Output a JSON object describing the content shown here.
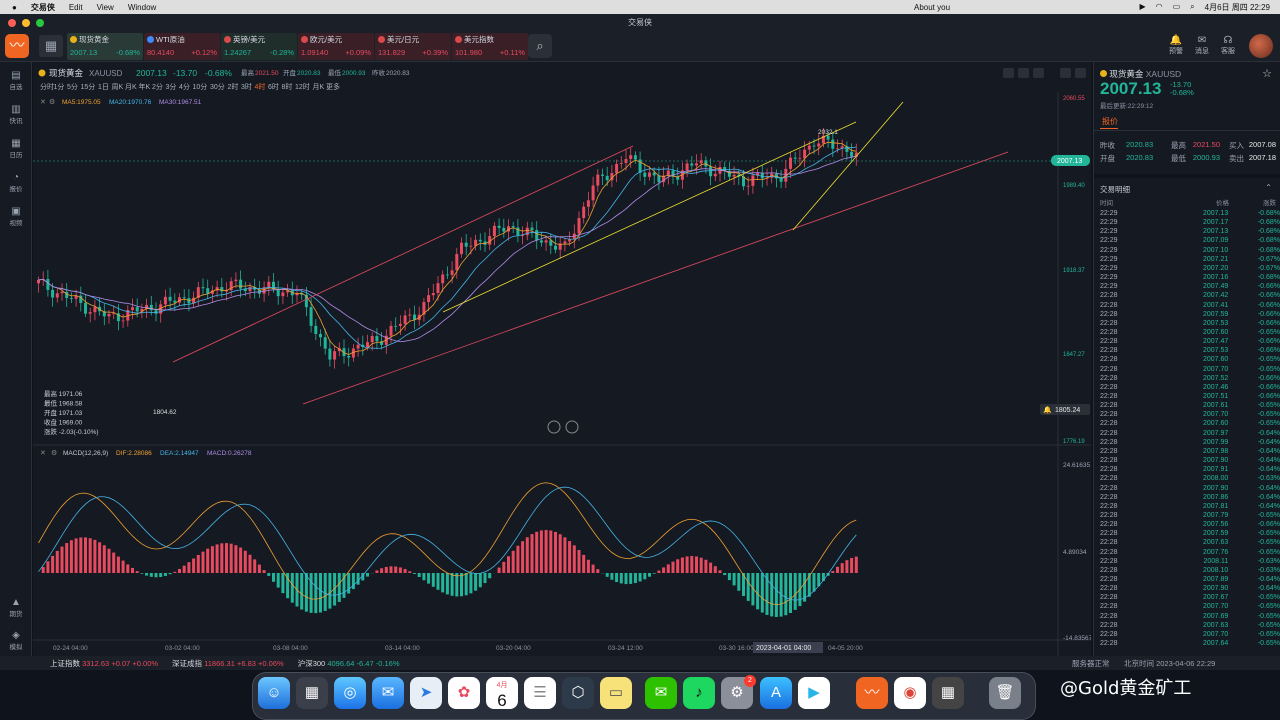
{
  "menubar": {
    "app": "交易侠",
    "menus": [
      "Edit",
      "View",
      "Window"
    ],
    "center": "About you",
    "datetime": "4月6日 周四 22:29"
  },
  "window": {
    "title": "交易侠"
  },
  "toolbar": {
    "tickers": [
      {
        "name": "现货黄金",
        "price": "2007.13",
        "change": "-0.68%",
        "color": "#22b59a",
        "active": true
      },
      {
        "name": "WTI原油",
        "price": "80.4140",
        "change": "+0.12%",
        "color": "#e84a5f"
      },
      {
        "name": "英镑/美元",
        "price": "1.24267",
        "change": "-0.28%",
        "color": "#22b59a"
      },
      {
        "name": "欧元/美元",
        "price": "1.09140",
        "change": "+0.09%",
        "color": "#e84a5f"
      },
      {
        "name": "美元/日元",
        "price": "131.829",
        "change": "+0.39%",
        "color": "#e84a5f"
      },
      {
        "name": "美元指数",
        "price": "101.980",
        "change": "+0.11%",
        "color": "#e84a5f"
      }
    ],
    "actions": [
      "预警",
      "消息",
      "客服"
    ]
  },
  "sidebar": {
    "top": [
      "自选",
      "快讯",
      "日历",
      "报价",
      "视频"
    ],
    "bottom": [
      "期货",
      "模拟"
    ]
  },
  "chart": {
    "symbol_name": "现货黄金",
    "symbol": "XAUUSD",
    "price": "2007.13",
    "change": "-13.70",
    "change_pct": "-0.68%",
    "high_label": "最高",
    "high": "2021.50",
    "open_label": "开盘",
    "open": "2020.83",
    "low_label": "最低",
    "low": "2000.93",
    "close_label": "昨收",
    "prev_close": "2020.83",
    "periods": [
      "分时",
      "1分",
      "5分",
      "15分",
      "1日",
      "周K",
      "月K",
      "年K",
      "2分",
      "3分",
      "4分",
      "10分",
      "30分",
      "2时",
      "3时",
      "4时",
      "6时",
      "8时",
      "12时",
      "月K",
      "更多"
    ],
    "active_period": "4时",
    "ma": {
      "ma5": "MA5:1975.05",
      "ma20": "MA20:1970.76",
      "ma30": "MA30:1967.51"
    },
    "price_axis": [
      "2060.55",
      "1989.40",
      "1918.37",
      "1847.27",
      "1776.19"
    ],
    "current_price_tag": "2007.13",
    "alert_price": "1805.24",
    "mark_low": "1804.62",
    "mark_high": "2032.1",
    "tooltip": [
      "最高 1971.06",
      "最低 1968.58",
      "开盘 1971.03",
      "收盘 1969.00",
      "涨跌 -2.03(-0.10%)"
    ],
    "macd": {
      "label": "MACD(12,26,9)",
      "dif": "DIF:2.28086",
      "dea": "DEA:2.14947",
      "macd": "MACD:0.26278",
      "axis": [
        "24.61635",
        "4.89034",
        "-14.83567"
      ]
    },
    "dates": [
      "02-24 04:00",
      "03-02 04:00",
      "03-08 04:00",
      "03-14 04:00",
      "03-20 04:00",
      "03-24 12:00",
      "03-30 16:00",
      "04-05 20:00"
    ],
    "crosshair_date": "2023-04-01 04:00"
  },
  "quote": {
    "name": "现货黄金",
    "symbol": "XAUUSD",
    "price": "2007.13",
    "change": "-13.70",
    "change_pct": "-0.68%",
    "updated": "最后更新:22:29:12",
    "tab": "报价",
    "rows": [
      {
        "l1": "昨收",
        "v1": "2020.83",
        "l2": "最高",
        "v2": "2021.50",
        "l3": "买入",
        "v3": "2007.08"
      },
      {
        "l1": "开盘",
        "v1": "2020.83",
        "l2": "最低",
        "v2": "2000.93",
        "l3": "卖出",
        "v3": "2007.18"
      }
    ],
    "ticks_title": "交易明细",
    "tick_headers": [
      "时间",
      "价格",
      "涨跌"
    ],
    "ticks": [
      [
        "22:29",
        "2007.13",
        "-0.68%"
      ],
      [
        "22:29",
        "2007.17",
        "-0.68%"
      ],
      [
        "22:29",
        "2007.13",
        "-0.68%"
      ],
      [
        "22:29",
        "2007.09",
        "-0.68%"
      ],
      [
        "22:29",
        "2007.10",
        "-0.68%"
      ],
      [
        "22:29",
        "2007.21",
        "-0.67%"
      ],
      [
        "22:29",
        "2007.20",
        "-0.67%"
      ],
      [
        "22:29",
        "2007.16",
        "-0.68%"
      ],
      [
        "22:29",
        "2007.49",
        "-0.66%"
      ],
      [
        "22:28",
        "2007.42",
        "-0.66%"
      ],
      [
        "22:28",
        "2007.41",
        "-0.66%"
      ],
      [
        "22:28",
        "2007.59",
        "-0.66%"
      ],
      [
        "22:28",
        "2007.53",
        "-0.66%"
      ],
      [
        "22:28",
        "2007.60",
        "-0.65%"
      ],
      [
        "22:28",
        "2007.47",
        "-0.66%"
      ],
      [
        "22:28",
        "2007.53",
        "-0.66%"
      ],
      [
        "22:28",
        "2007.60",
        "-0.65%"
      ],
      [
        "22:28",
        "2007.70",
        "-0.65%"
      ],
      [
        "22:28",
        "2007.52",
        "-0.66%"
      ],
      [
        "22:28",
        "2007.46",
        "-0.66%"
      ],
      [
        "22:28",
        "2007.51",
        "-0.66%"
      ],
      [
        "22:28",
        "2007.61",
        "-0.65%"
      ],
      [
        "22:28",
        "2007.70",
        "-0.65%"
      ],
      [
        "22:28",
        "2007.60",
        "-0.65%"
      ],
      [
        "22:28",
        "2007.97",
        "-0.64%"
      ],
      [
        "22:28",
        "2007.99",
        "-0.64%"
      ],
      [
        "22:28",
        "2007.98",
        "-0.64%"
      ],
      [
        "22:28",
        "2007.90",
        "-0.64%"
      ],
      [
        "22:28",
        "2007.91",
        "-0.64%"
      ],
      [
        "22:28",
        "2008.00",
        "-0.63%"
      ],
      [
        "22:28",
        "2007.90",
        "-0.64%"
      ],
      [
        "22:28",
        "2007.86",
        "-0.64%"
      ],
      [
        "22:28",
        "2007.81",
        "-0.64%"
      ],
      [
        "22:28",
        "2007.79",
        "-0.65%"
      ],
      [
        "22:28",
        "2007.56",
        "-0.66%"
      ],
      [
        "22:28",
        "2007.59",
        "-0.65%"
      ],
      [
        "22:28",
        "2007.63",
        "-0.65%"
      ],
      [
        "22:28",
        "2007.76",
        "-0.65%"
      ],
      [
        "22:28",
        "2008.11",
        "-0.63%"
      ],
      [
        "22:28",
        "2008.10",
        "-0.63%"
      ],
      [
        "22:28",
        "2007.89",
        "-0.64%"
      ],
      [
        "22:28",
        "2007.90",
        "-0.64%"
      ],
      [
        "22:28",
        "2007.67",
        "-0.65%"
      ],
      [
        "22:28",
        "2007.70",
        "-0.65%"
      ],
      [
        "22:28",
        "2007.69",
        "-0.65%"
      ],
      [
        "22:28",
        "2007.63",
        "-0.65%"
      ],
      [
        "22:28",
        "2007.70",
        "-0.65%"
      ],
      [
        "22:28",
        "2007.64",
        "-0.65%"
      ]
    ]
  },
  "statusbar": {
    "indices": [
      {
        "name": "上证指数",
        "value": "3312.63",
        "chg": "+0.07",
        "pct": "+0.00%",
        "color": "#e84a5f"
      },
      {
        "name": "深证成指",
        "value": "11866.31",
        "chg": "+6.83",
        "pct": "+0.06%",
        "color": "#e84a5f"
      },
      {
        "name": "沪深300",
        "value": "4096.64",
        "chg": "-6.47",
        "pct": "-0.16%",
        "color": "#22b59a"
      }
    ],
    "server": "服务器正常",
    "beijing_time": "北京时间 2023-04-06 22:29"
  },
  "dock": {
    "calendar_month": "4月",
    "calendar_day": "6",
    "badge": "2"
  },
  "watermark": "@Gold黄金矿工"
}
